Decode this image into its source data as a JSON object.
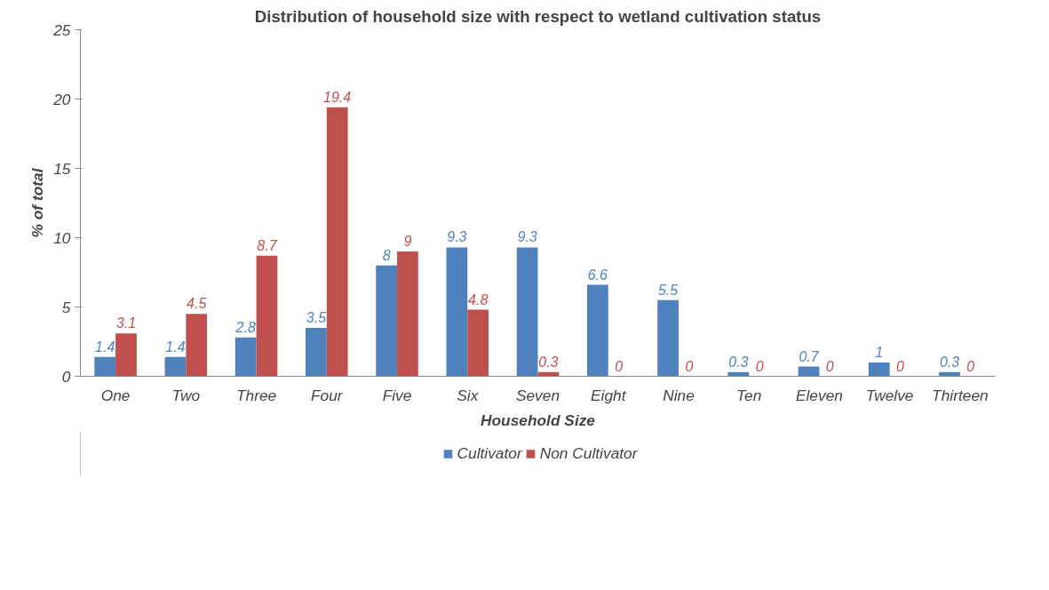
{
  "chart_data": {
    "type": "bar",
    "title": "Distribution of household size with respect to wetland cultivation status",
    "xlabel": "Household Size",
    "ylabel": "% of total",
    "categories": [
      "One",
      "Two",
      "Three",
      "Four",
      "Five",
      "Six",
      "Seven",
      "Eight",
      "Nine",
      "Ten",
      "Eleven",
      "Twelve",
      "Thirteen"
    ],
    "series": [
      {
        "name": "Cultivator",
        "color": "#4f81bd",
        "values": [
          1.4,
          1.4,
          2.8,
          3.5,
          8,
          9.3,
          9.3,
          6.6,
          5.5,
          0.3,
          0.7,
          1,
          0.3
        ]
      },
      {
        "name": "Non Cultivator",
        "color": "#c0504d",
        "values": [
          3.1,
          4.5,
          8.7,
          19.4,
          9,
          4.8,
          0.3,
          0,
          0,
          0,
          0,
          0,
          0
        ]
      }
    ],
    "ylim": [
      0,
      25
    ],
    "yticks": [
      0,
      5,
      10,
      15,
      20,
      25
    ],
    "grid": false,
    "legend": "bottom",
    "data_labels": true
  }
}
